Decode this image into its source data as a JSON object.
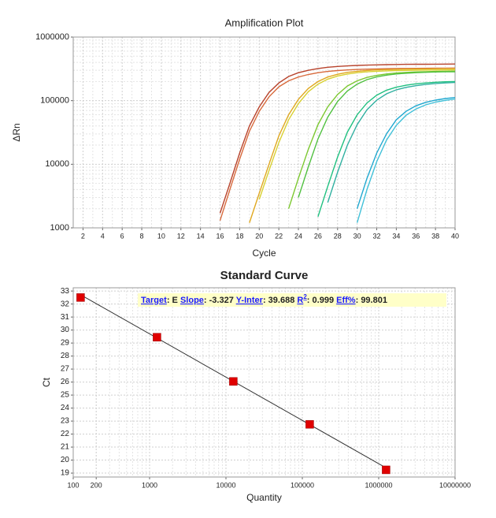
{
  "chart_data": [
    {
      "type": "line",
      "title": "Amplification Plot",
      "x_label": "Cycle",
      "y_label": "ΔRn",
      "log_y": true,
      "grid": true,
      "minor_grid": true,
      "x": [
        1,
        2,
        3,
        4,
        5,
        6,
        7,
        8,
        9,
        10,
        11,
        12,
        13,
        14,
        15,
        16,
        17,
        18,
        19,
        20,
        21,
        22,
        23,
        24,
        25,
        26,
        27,
        28,
        29,
        30,
        31,
        32,
        33,
        34,
        35,
        36,
        37,
        38,
        39,
        40
      ],
      "xlim": [
        1,
        40
      ],
      "xticks": [
        2,
        4,
        6,
        8,
        10,
        12,
        14,
        16,
        18,
        20,
        22,
        24,
        26,
        28,
        30,
        32,
        34,
        36,
        38,
        40
      ],
      "ylim": [
        1000,
        1000000
      ],
      "yticks": [
        1000,
        10000,
        100000,
        1000000
      ],
      "series": [
        {
          "color": "#b8432c",
          "values": [
            null,
            null,
            null,
            null,
            null,
            null,
            null,
            null,
            null,
            null,
            null,
            null,
            null,
            null,
            null,
            1700,
            5000,
            15000,
            40000,
            80000,
            135000,
            190000,
            240000,
            275000,
            300000,
            320000,
            335000,
            345000,
            352000,
            358000,
            362000,
            365000,
            368000,
            370000,
            372000,
            373000,
            374000,
            375000,
            376000,
            377000
          ]
        },
        {
          "color": "#d86a3c",
          "values": [
            null,
            null,
            null,
            null,
            null,
            null,
            null,
            null,
            null,
            null,
            null,
            null,
            null,
            null,
            null,
            1300,
            4000,
            12000,
            33000,
            68000,
            115000,
            165000,
            205000,
            235000,
            258000,
            275000,
            288000,
            297000,
            304000,
            309000,
            313000,
            316000,
            318000,
            320000,
            321000,
            322000,
            323000,
            324000,
            325000,
            326000
          ]
        },
        {
          "color": "#e0a820",
          "values": [
            null,
            null,
            null,
            null,
            null,
            null,
            null,
            null,
            null,
            null,
            null,
            null,
            null,
            null,
            null,
            null,
            null,
            null,
            1200,
            3500,
            10000,
            28000,
            60000,
            105000,
            155000,
            200000,
            235000,
            260000,
            278000,
            290000,
            298000,
            304000,
            308000,
            311000,
            313000,
            315000,
            316000,
            317000,
            318000,
            319000
          ]
        },
        {
          "color": "#d8d030",
          "values": [
            null,
            null,
            null,
            null,
            null,
            null,
            null,
            null,
            null,
            null,
            null,
            null,
            null,
            null,
            null,
            null,
            null,
            null,
            null,
            2800,
            8000,
            22000,
            50000,
            90000,
            138000,
            182000,
            218000,
            244000,
            262000,
            275000,
            284000,
            290000,
            294000,
            297000,
            299000,
            301000,
            302000,
            303000,
            304000,
            305000
          ]
        },
        {
          "color": "#7cc830",
          "values": [
            null,
            null,
            null,
            null,
            null,
            null,
            null,
            null,
            null,
            null,
            null,
            null,
            null,
            null,
            null,
            null,
            null,
            null,
            null,
            null,
            null,
            null,
            2000,
            6000,
            17000,
            42000,
            80000,
            125000,
            170000,
            205000,
            232000,
            250000,
            263000,
            272000,
            278000,
            283000,
            286000,
            288000,
            290000,
            291000
          ]
        },
        {
          "color": "#50c040",
          "values": [
            null,
            null,
            null,
            null,
            null,
            null,
            null,
            null,
            null,
            null,
            null,
            null,
            null,
            null,
            null,
            null,
            null,
            null,
            null,
            null,
            null,
            null,
            null,
            3000,
            9000,
            25000,
            55000,
            97000,
            142000,
            182000,
            214000,
            236000,
            252000,
            263000,
            270000,
            275000,
            279000,
            282000,
            284000,
            285000
          ]
        },
        {
          "color": "#20c080",
          "values": [
            null,
            null,
            null,
            null,
            null,
            null,
            null,
            null,
            null,
            null,
            null,
            null,
            null,
            null,
            null,
            null,
            null,
            null,
            null,
            null,
            null,
            null,
            null,
            null,
            null,
            1500,
            4500,
            13000,
            32000,
            60000,
            92000,
            122000,
            146000,
            163000,
            175000,
            184000,
            190000,
            195000,
            198000,
            200000
          ]
        },
        {
          "color": "#30b0a0",
          "values": [
            null,
            null,
            null,
            null,
            null,
            null,
            null,
            null,
            null,
            null,
            null,
            null,
            null,
            null,
            null,
            null,
            null,
            null,
            null,
            null,
            null,
            null,
            null,
            null,
            null,
            null,
            2500,
            7500,
            20000,
            42000,
            72000,
            102000,
            128000,
            148000,
            162000,
            172000,
            180000,
            186000,
            190000,
            193000
          ]
        },
        {
          "color": "#20a8d0",
          "values": [
            null,
            null,
            null,
            null,
            null,
            null,
            null,
            null,
            null,
            null,
            null,
            null,
            null,
            null,
            null,
            null,
            null,
            null,
            null,
            null,
            null,
            null,
            null,
            null,
            null,
            null,
            null,
            null,
            null,
            2000,
            6000,
            15000,
            30000,
            50000,
            68000,
            83000,
            94000,
            102000,
            108000,
            112000
          ]
        },
        {
          "color": "#40c0d8",
          "values": [
            null,
            null,
            null,
            null,
            null,
            null,
            null,
            null,
            null,
            null,
            null,
            null,
            null,
            null,
            null,
            null,
            null,
            null,
            null,
            null,
            null,
            null,
            null,
            null,
            null,
            null,
            null,
            null,
            null,
            1200,
            4000,
            11000,
            24000,
            41000,
            59000,
            74000,
            86000,
            95000,
            101000,
            106000
          ]
        }
      ]
    },
    {
      "type": "scatter",
      "title": "Standard Curve",
      "x_label": "Quantity",
      "y_label": "Ct",
      "log_x": true,
      "grid": true,
      "minor_grid": true,
      "x": [
        125,
        1250,
        12500,
        125000,
        1250000
      ],
      "values": [
        32.5,
        29.45,
        26.05,
        22.75,
        19.25
      ],
      "color": "#e00000",
      "line_color": "#333333",
      "xlim": [
        100,
        10000000
      ],
      "xticks": [
        100,
        200,
        1000,
        10000,
        100000,
        1000000,
        10000000
      ],
      "ylim": [
        18.7,
        33.25
      ],
      "yticks": [
        19,
        20,
        21,
        22,
        23,
        24,
        25,
        26,
        27,
        28,
        29,
        30,
        31,
        32,
        33
      ],
      "annotation": {
        "separator": ":",
        "target_label": "Target",
        "target": "E",
        "slope_label": "Slope",
        "slope": -3.327,
        "y_inter_label": "Y-Inter",
        "y_inter": 39.688,
        "r2_label": "R",
        "r2_sup": "2",
        "r2": 0.999,
        "eff_label": "Eff%",
        "eff": 99.801
      }
    }
  ]
}
